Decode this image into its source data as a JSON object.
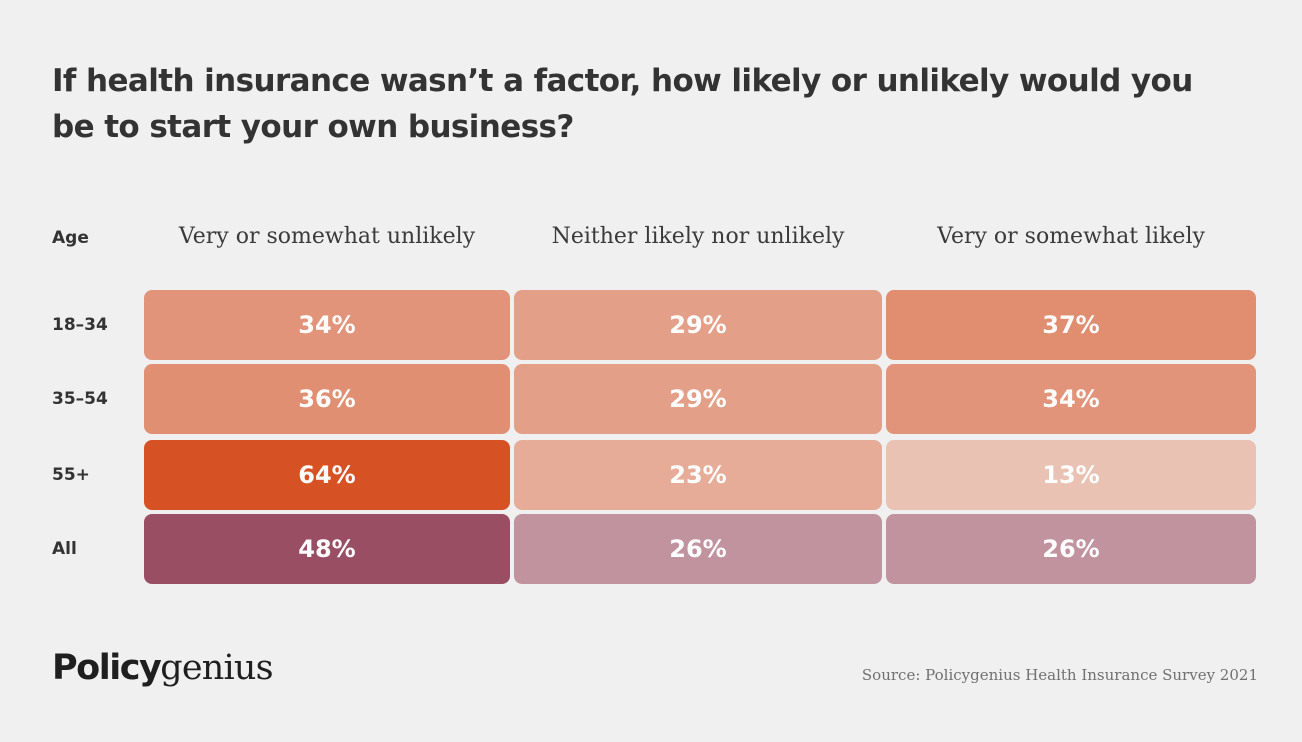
{
  "title": "If health insurance wasn’t a factor, how likely or unlikely would you be to start your own business?",
  "logo": {
    "part1": "Policy",
    "part2": "genius"
  },
  "source": "Source: Policygenius Health Insurance Survey 2021",
  "colors": {
    "background": "#f0f0f0",
    "all_row": [
      "#9a4e64",
      "#c0939e",
      "#c0939e"
    ]
  },
  "chart_data": {
    "type": "table",
    "title": "If health insurance wasn’t a factor, how likely or unlikely would you be to start your own business?",
    "row_header": "Age",
    "columns": [
      "Very or somewhat unlikely",
      "Neither likely nor unlikely",
      "Very or somewhat likely"
    ],
    "rows": [
      "18–34",
      "35–54",
      "55+",
      "All"
    ],
    "values": [
      [
        34,
        29,
        37
      ],
      [
        36,
        29,
        34
      ],
      [
        64,
        23,
        13
      ],
      [
        48,
        26,
        26
      ]
    ],
    "unit": "%"
  }
}
